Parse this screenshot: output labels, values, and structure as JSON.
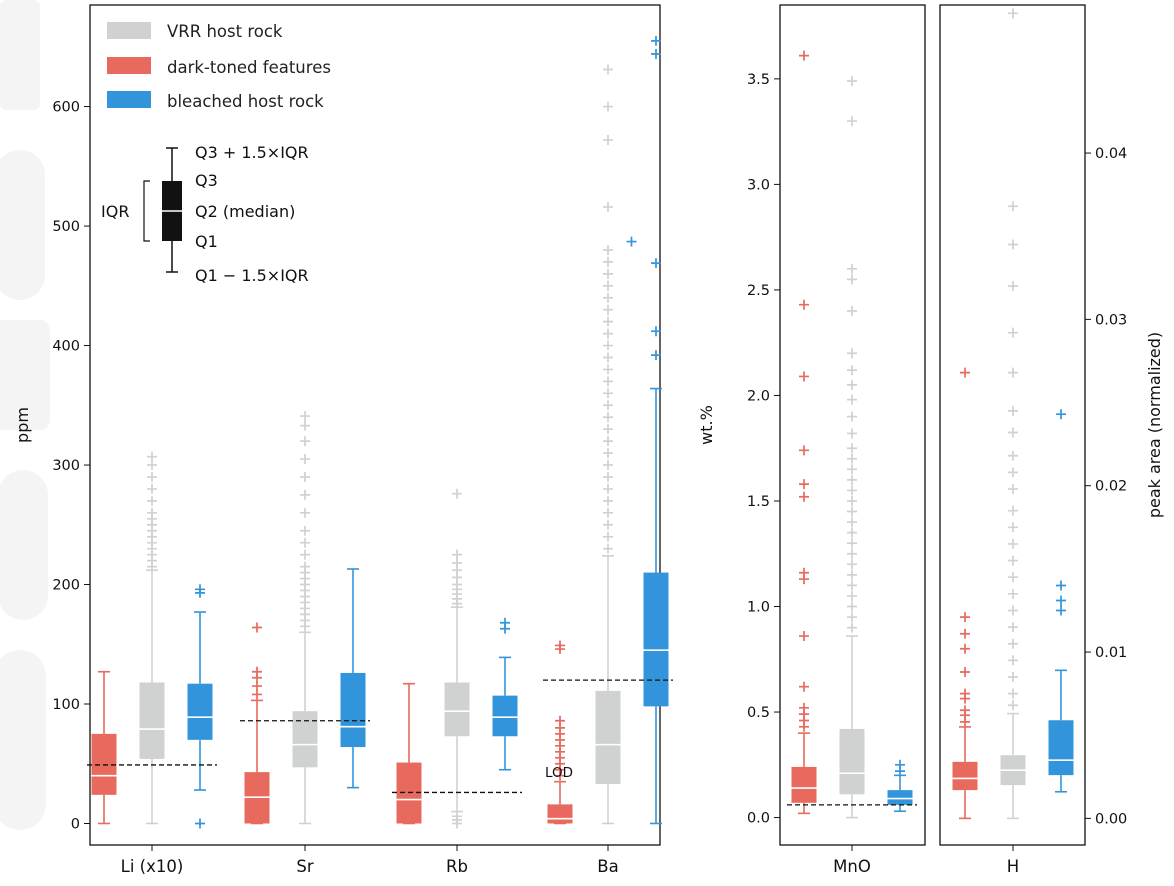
{
  "colors": {
    "host": "#cfd2d1",
    "dark": "#e8695d",
    "bleached": "#3295dc",
    "legend_box": "#111111",
    "watermark": "#9aa0a0"
  },
  "legend": [
    {
      "label": "VRR host rock",
      "color": "#cfd2d1"
    },
    {
      "label": "dark-toned features",
      "color": "#e8695d"
    },
    {
      "label": "bleached host rock",
      "color": "#3295dc"
    }
  ],
  "box_key": {
    "iqr": "IQR",
    "whisker_high": "Q3 + 1.5×IQR",
    "q3": "Q3",
    "median": "Q2 (median)",
    "q1": "Q1",
    "whisker_low": "Q1 − 1.5×IQR"
  },
  "lod_label": "LOD",
  "chart_data": [
    {
      "type": "box",
      "ylabel": "ppm",
      "ylim": [
        -18,
        685
      ],
      "yticks": [
        0,
        100,
        200,
        300,
        400,
        500,
        600
      ],
      "categories": [
        "Li (x10)",
        "Sr",
        "Rb",
        "Ba"
      ],
      "series": [
        {
          "name": "dark-toned features",
          "color": "#e8695d",
          "boxes": [
            {
              "min": 0,
              "q1": 24,
              "median": 40,
              "q3": 75,
              "max": 127,
              "outliers": []
            },
            {
              "min": 0,
              "q1": 0,
              "median": 22,
              "q3": 43,
              "max": 103,
              "outliers": [
                108,
                115,
                122,
                127,
                164
              ]
            },
            {
              "min": 0,
              "q1": 0,
              "median": 20,
              "q3": 51,
              "max": 117,
              "outliers": []
            },
            {
              "min": 0,
              "q1": 0,
              "median": 4,
              "q3": 16,
              "max": 35,
              "outliers": [
                40,
                45,
                50,
                55,
                60,
                65,
                70,
                75,
                80,
                86,
                146,
                149
              ]
            }
          ]
        },
        {
          "name": "VRR host rock",
          "color": "#cfd2d1",
          "boxes": [
            {
              "min": 0,
              "q1": 54,
              "median": 79,
              "q3": 118,
              "max": 212,
              "outliers": [
                215,
                220,
                225,
                230,
                235,
                240,
                245,
                250,
                255,
                260,
                270,
                280,
                290,
                300,
                307
              ]
            },
            {
              "min": 0,
              "q1": 47,
              "median": 66,
              "q3": 94,
              "max": 160,
              "outliers": [
                165,
                170,
                175,
                180,
                185,
                190,
                195,
                200,
                205,
                210,
                215,
                225,
                235,
                245,
                260,
                275,
                290,
                305,
                320,
                333,
                341
              ]
            },
            {
              "min": 10,
              "q1": 73,
              "median": 94,
              "q3": 118,
              "max": 181,
              "outliers": [
                0,
                3,
                6,
                184,
                188,
                192,
                196,
                200,
                206,
                212,
                218,
                225,
                276
              ]
            },
            {
              "min": 0,
              "q1": 33,
              "median": 66,
              "q3": 111,
              "max": 224,
              "outliers": [
                230,
                240,
                250,
                260,
                270,
                280,
                290,
                300,
                310,
                320,
                330,
                340,
                350,
                360,
                370,
                380,
                390,
                400,
                410,
                420,
                430,
                440,
                450,
                460,
                470,
                480,
                516,
                572,
                600,
                631
              ]
            }
          ]
        },
        {
          "name": "bleached host rock",
          "color": "#3295dc",
          "boxes": [
            {
              "min": 28,
              "q1": 70,
              "median": 89,
              "q3": 117,
              "max": 177,
              "outliers": [
                0,
                193,
                196
              ]
            },
            {
              "min": 30,
              "q1": 64,
              "median": 81,
              "q3": 126,
              "max": 213,
              "outliers": []
            },
            {
              "min": 45,
              "q1": 73,
              "median": 89,
              "q3": 107,
              "max": 139,
              "outliers": [
                163,
                168
              ]
            },
            {
              "min": 0,
              "q1": 98,
              "median": 145,
              "q3": 210,
              "max": 364,
              "outliers": [
                392,
                412,
                469,
                644,
                655
              ]
            }
          ]
        }
      ],
      "extra_points": [
        {
          "x_offset": 0.95,
          "y": 487,
          "color": "#3295dc"
        }
      ],
      "lod": [
        {
          "category": "Li (x10)",
          "y": 49
        },
        {
          "category": "Sr",
          "y": 86
        },
        {
          "category": "Rb",
          "y": 26
        },
        {
          "category": "Ba",
          "y": 120
        }
      ]
    },
    {
      "type": "box",
      "ylabel": "wt.%",
      "ylim": [
        -0.13,
        3.85
      ],
      "yticks": [
        "0.0",
        "0.5",
        "1.0",
        "1.5",
        "2.0",
        "2.5",
        "3.0",
        "3.5"
      ],
      "categories": [
        "MnO"
      ],
      "series": [
        {
          "name": "dark-toned features",
          "color": "#e8695d",
          "boxes": [
            {
              "min": 0.02,
              "q1": 0.07,
              "median": 0.14,
              "q3": 0.24,
              "max": 0.4,
              "outliers": [
                0.43,
                0.46,
                0.49,
                0.52,
                0.62,
                0.86,
                1.13,
                1.16,
                1.52,
                1.58,
                1.74,
                2.09,
                2.43,
                3.61
              ]
            }
          ]
        },
        {
          "name": "VRR host rock",
          "color": "#cfd2d1",
          "boxes": [
            {
              "min": 0.0,
              "q1": 0.11,
              "median": 0.21,
              "q3": 0.42,
              "max": 0.86,
              "outliers": [
                0.9,
                0.95,
                1.0,
                1.05,
                1.1,
                1.15,
                1.2,
                1.25,
                1.3,
                1.35,
                1.4,
                1.45,
                1.5,
                1.55,
                1.6,
                1.65,
                1.7,
                1.75,
                1.82,
                1.9,
                1.98,
                2.05,
                2.12,
                2.2,
                2.4,
                2.55,
                2.6,
                3.3,
                3.49
              ]
            }
          ]
        },
        {
          "name": "bleached host rock",
          "color": "#3295dc",
          "boxes": [
            {
              "min": 0.03,
              "q1": 0.06,
              "median": 0.09,
              "q3": 0.13,
              "max": 0.2,
              "outliers": [
                0.22,
                0.25
              ]
            }
          ]
        }
      ],
      "lod": [
        {
          "category": "MnO",
          "y": 0.06
        }
      ]
    },
    {
      "type": "box",
      "ylabel": "peak area (normalized)",
      "ylim": [
        -0.0016,
        0.0489
      ],
      "yticks": [
        "0.00",
        "0.01",
        "0.02",
        "0.03",
        "0.04"
      ],
      "categories": [
        "H"
      ],
      "series": [
        {
          "name": "dark-toned features",
          "color": "#e8695d",
          "boxes": [
            {
              "min": 0.0,
              "q1": 0.0017,
              "median": 0.0024,
              "q3": 0.0034,
              "max": 0.0055,
              "outliers": [
                0.0058,
                0.0062,
                0.0065,
                0.0072,
                0.0075,
                0.0088,
                0.0102,
                0.0111,
                0.0121,
                0.0268
              ]
            }
          ]
        },
        {
          "name": "VRR host rock",
          "color": "#cfd2d1",
          "boxes": [
            {
              "min": 0.0,
              "q1": 0.002,
              "median": 0.0029,
              "q3": 0.0038,
              "max": 0.0063,
              "outliers": [
                0.0068,
                0.0075,
                0.0085,
                0.0095,
                0.0105,
                0.0115,
                0.0125,
                0.0135,
                0.0145,
                0.0155,
                0.0165,
                0.0175,
                0.0185,
                0.0198,
                0.0208,
                0.0218,
                0.0232,
                0.0245,
                0.0268,
                0.0292,
                0.032,
                0.0345,
                0.0368,
                0.0484
              ]
            }
          ]
        },
        {
          "name": "bleached host rock",
          "color": "#3295dc",
          "boxes": [
            {
              "min": 0.0016,
              "q1": 0.0026,
              "median": 0.0035,
              "q3": 0.0059,
              "max": 0.0089,
              "outliers": [
                0.0125,
                0.0131,
                0.014,
                0.0243
              ]
            }
          ]
        }
      ]
    }
  ]
}
